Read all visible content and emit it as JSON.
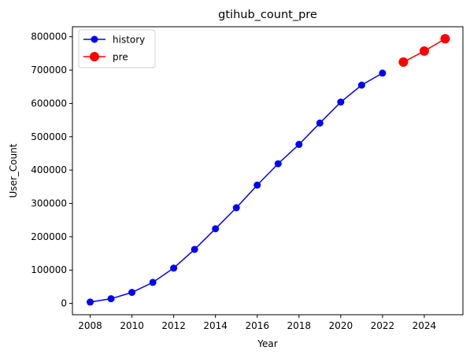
{
  "chart_data": {
    "type": "line",
    "title": "gtihub_count_pre",
    "xlabel": "Year",
    "ylabel": "User_Count",
    "xlim": [
      2007.15,
      2025.85
    ],
    "ylim": [
      -34000,
      830000
    ],
    "xticks": [
      2008,
      2010,
      2012,
      2014,
      2016,
      2018,
      2020,
      2022,
      2024
    ],
    "yticks": [
      0,
      100000,
      200000,
      300000,
      400000,
      500000,
      600000,
      700000,
      800000
    ],
    "grid": false,
    "legend_position": "upper-left",
    "series": [
      {
        "name": "history",
        "color": "#0000ff",
        "marker": "circle",
        "x": [
          2008,
          2009,
          2010,
          2011,
          2012,
          2013,
          2014,
          2015,
          2016,
          2017,
          2018,
          2019,
          2020,
          2021,
          2022
        ],
        "y": [
          4000,
          14000,
          33000,
          63000,
          106000,
          162000,
          224000,
          287000,
          355000,
          419000,
          477000,
          541000,
          604000,
          655000,
          691000
        ]
      },
      {
        "name": "pre",
        "color": "#ff0000",
        "marker": "circle-large",
        "x": [
          2023,
          2024,
          2025
        ],
        "y": [
          724000,
          757000,
          794000
        ]
      }
    ]
  }
}
